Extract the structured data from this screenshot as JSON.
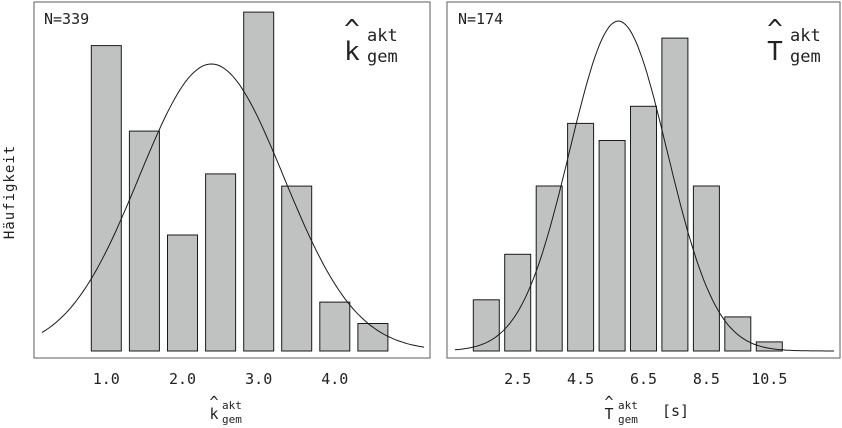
{
  "y_axis_label": "Häufigkeit",
  "chart_data": [
    {
      "type": "bar",
      "n_label": "N=339",
      "symbol": "k",
      "symbol_hat": "^",
      "symbol_sup": "akt",
      "symbol_sub": "gem",
      "xlabel_main": "k",
      "xlabel_hat": "^",
      "xlabel_sup": "akt",
      "xlabel_sub": "gem",
      "xlabel_unit": "",
      "bin_centers": [
        1.0,
        1.5,
        2.0,
        2.5,
        3.0,
        3.5,
        4.0,
        4.5
      ],
      "values": [
        100,
        72,
        38,
        58,
        111,
        54,
        16,
        9
      ],
      "xticks": [
        "1.0",
        "2.0",
        "3.0",
        "4.0"
      ],
      "xtick_values": [
        1.0,
        2.0,
        3.0,
        4.0
      ],
      "xlim": [
        0.05,
        5.25
      ],
      "ylim": [
        0,
        112
      ],
      "normal_fit": {
        "mean": 2.38,
        "sd": 0.95,
        "peak": 94
      }
    },
    {
      "type": "bar",
      "n_label": "N=174",
      "symbol": "T",
      "symbol_hat": "^",
      "symbol_sup": "akt",
      "symbol_sub": "gem",
      "xlabel_main": "T",
      "xlabel_hat": "^",
      "xlabel_sup": "akt",
      "xlabel_sub": "gem",
      "xlabel_unit": "[s]",
      "bin_centers": [
        1.5,
        2.5,
        3.5,
        4.5,
        5.5,
        6.5,
        7.5,
        8.5,
        9.5,
        10.5
      ],
      "values": [
        9,
        17,
        29,
        40,
        37,
        43,
        55,
        29,
        6,
        1.6
      ],
      "xticks": [
        "2.5",
        "4.5",
        "6.5",
        "8.5",
        "10.5"
      ],
      "xtick_values": [
        2.5,
        4.5,
        6.5,
        8.5,
        10.5
      ],
      "xlim": [
        0.25,
        12.75
      ],
      "ylim": [
        0,
        58
      ],
      "normal_fit": {
        "mean": 5.7,
        "sd": 1.55,
        "peak": 58
      }
    }
  ]
}
